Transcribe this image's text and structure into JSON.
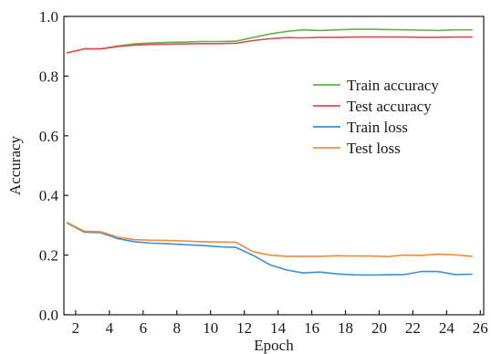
{
  "chart_data": {
    "type": "line",
    "title": "",
    "xlabel": "Epoch",
    "ylabel": "Accuracy",
    "xlim": [
      1.3,
      26.2
    ],
    "ylim": [
      0.0,
      1.0
    ],
    "x_ticks": [
      2,
      4,
      6,
      8,
      10,
      12,
      14,
      16,
      18,
      20,
      22,
      24,
      26
    ],
    "y_ticks": [
      0.0,
      0.2,
      0.4,
      0.6,
      0.8,
      1.0
    ],
    "y_tick_labels": [
      "0.0",
      "0.2",
      "0.4",
      "0.6",
      "0.8",
      "1.0"
    ],
    "grid": false,
    "legend_position": "right",
    "x": [
      1.5,
      2.5,
      3.5,
      4.5,
      5.5,
      6.5,
      7.5,
      8.5,
      9.5,
      10.5,
      11.5,
      12.5,
      13.5,
      14.5,
      15.5,
      16.5,
      17.5,
      18.5,
      19.5,
      20.5,
      21.5,
      22.5,
      23.5,
      24.5,
      25.5
    ],
    "series": [
      {
        "name": "Train accuracy",
        "color": "#5cb548",
        "values": [
          0.878,
          0.891,
          0.891,
          0.901,
          0.908,
          0.911,
          0.913,
          0.914,
          0.916,
          0.916,
          0.917,
          0.929,
          0.941,
          0.95,
          0.955,
          0.953,
          0.955,
          0.957,
          0.957,
          0.956,
          0.955,
          0.954,
          0.953,
          0.955,
          0.955
        ]
      },
      {
        "name": "Test accuracy",
        "color": "#e4484c",
        "values": [
          0.878,
          0.891,
          0.891,
          0.899,
          0.904,
          0.906,
          0.907,
          0.908,
          0.909,
          0.909,
          0.91,
          0.919,
          0.925,
          0.929,
          0.928,
          0.93,
          0.93,
          0.931,
          0.931,
          0.931,
          0.931,
          0.93,
          0.93,
          0.931,
          0.931
        ]
      },
      {
        "name": "Train loss",
        "color": "#3c8fd6",
        "values": [
          0.307,
          0.277,
          0.275,
          0.255,
          0.245,
          0.24,
          0.238,
          0.235,
          0.232,
          0.228,
          0.226,
          0.2,
          0.168,
          0.15,
          0.14,
          0.143,
          0.137,
          0.134,
          0.133,
          0.134,
          0.135,
          0.145,
          0.145,
          0.135,
          0.136
        ]
      },
      {
        "name": "Test loss",
        "color": "#f08a36",
        "values": [
          0.309,
          0.28,
          0.278,
          0.26,
          0.252,
          0.25,
          0.249,
          0.247,
          0.245,
          0.244,
          0.243,
          0.212,
          0.2,
          0.196,
          0.196,
          0.196,
          0.198,
          0.197,
          0.197,
          0.195,
          0.2,
          0.199,
          0.203,
          0.201,
          0.196
        ]
      }
    ]
  }
}
